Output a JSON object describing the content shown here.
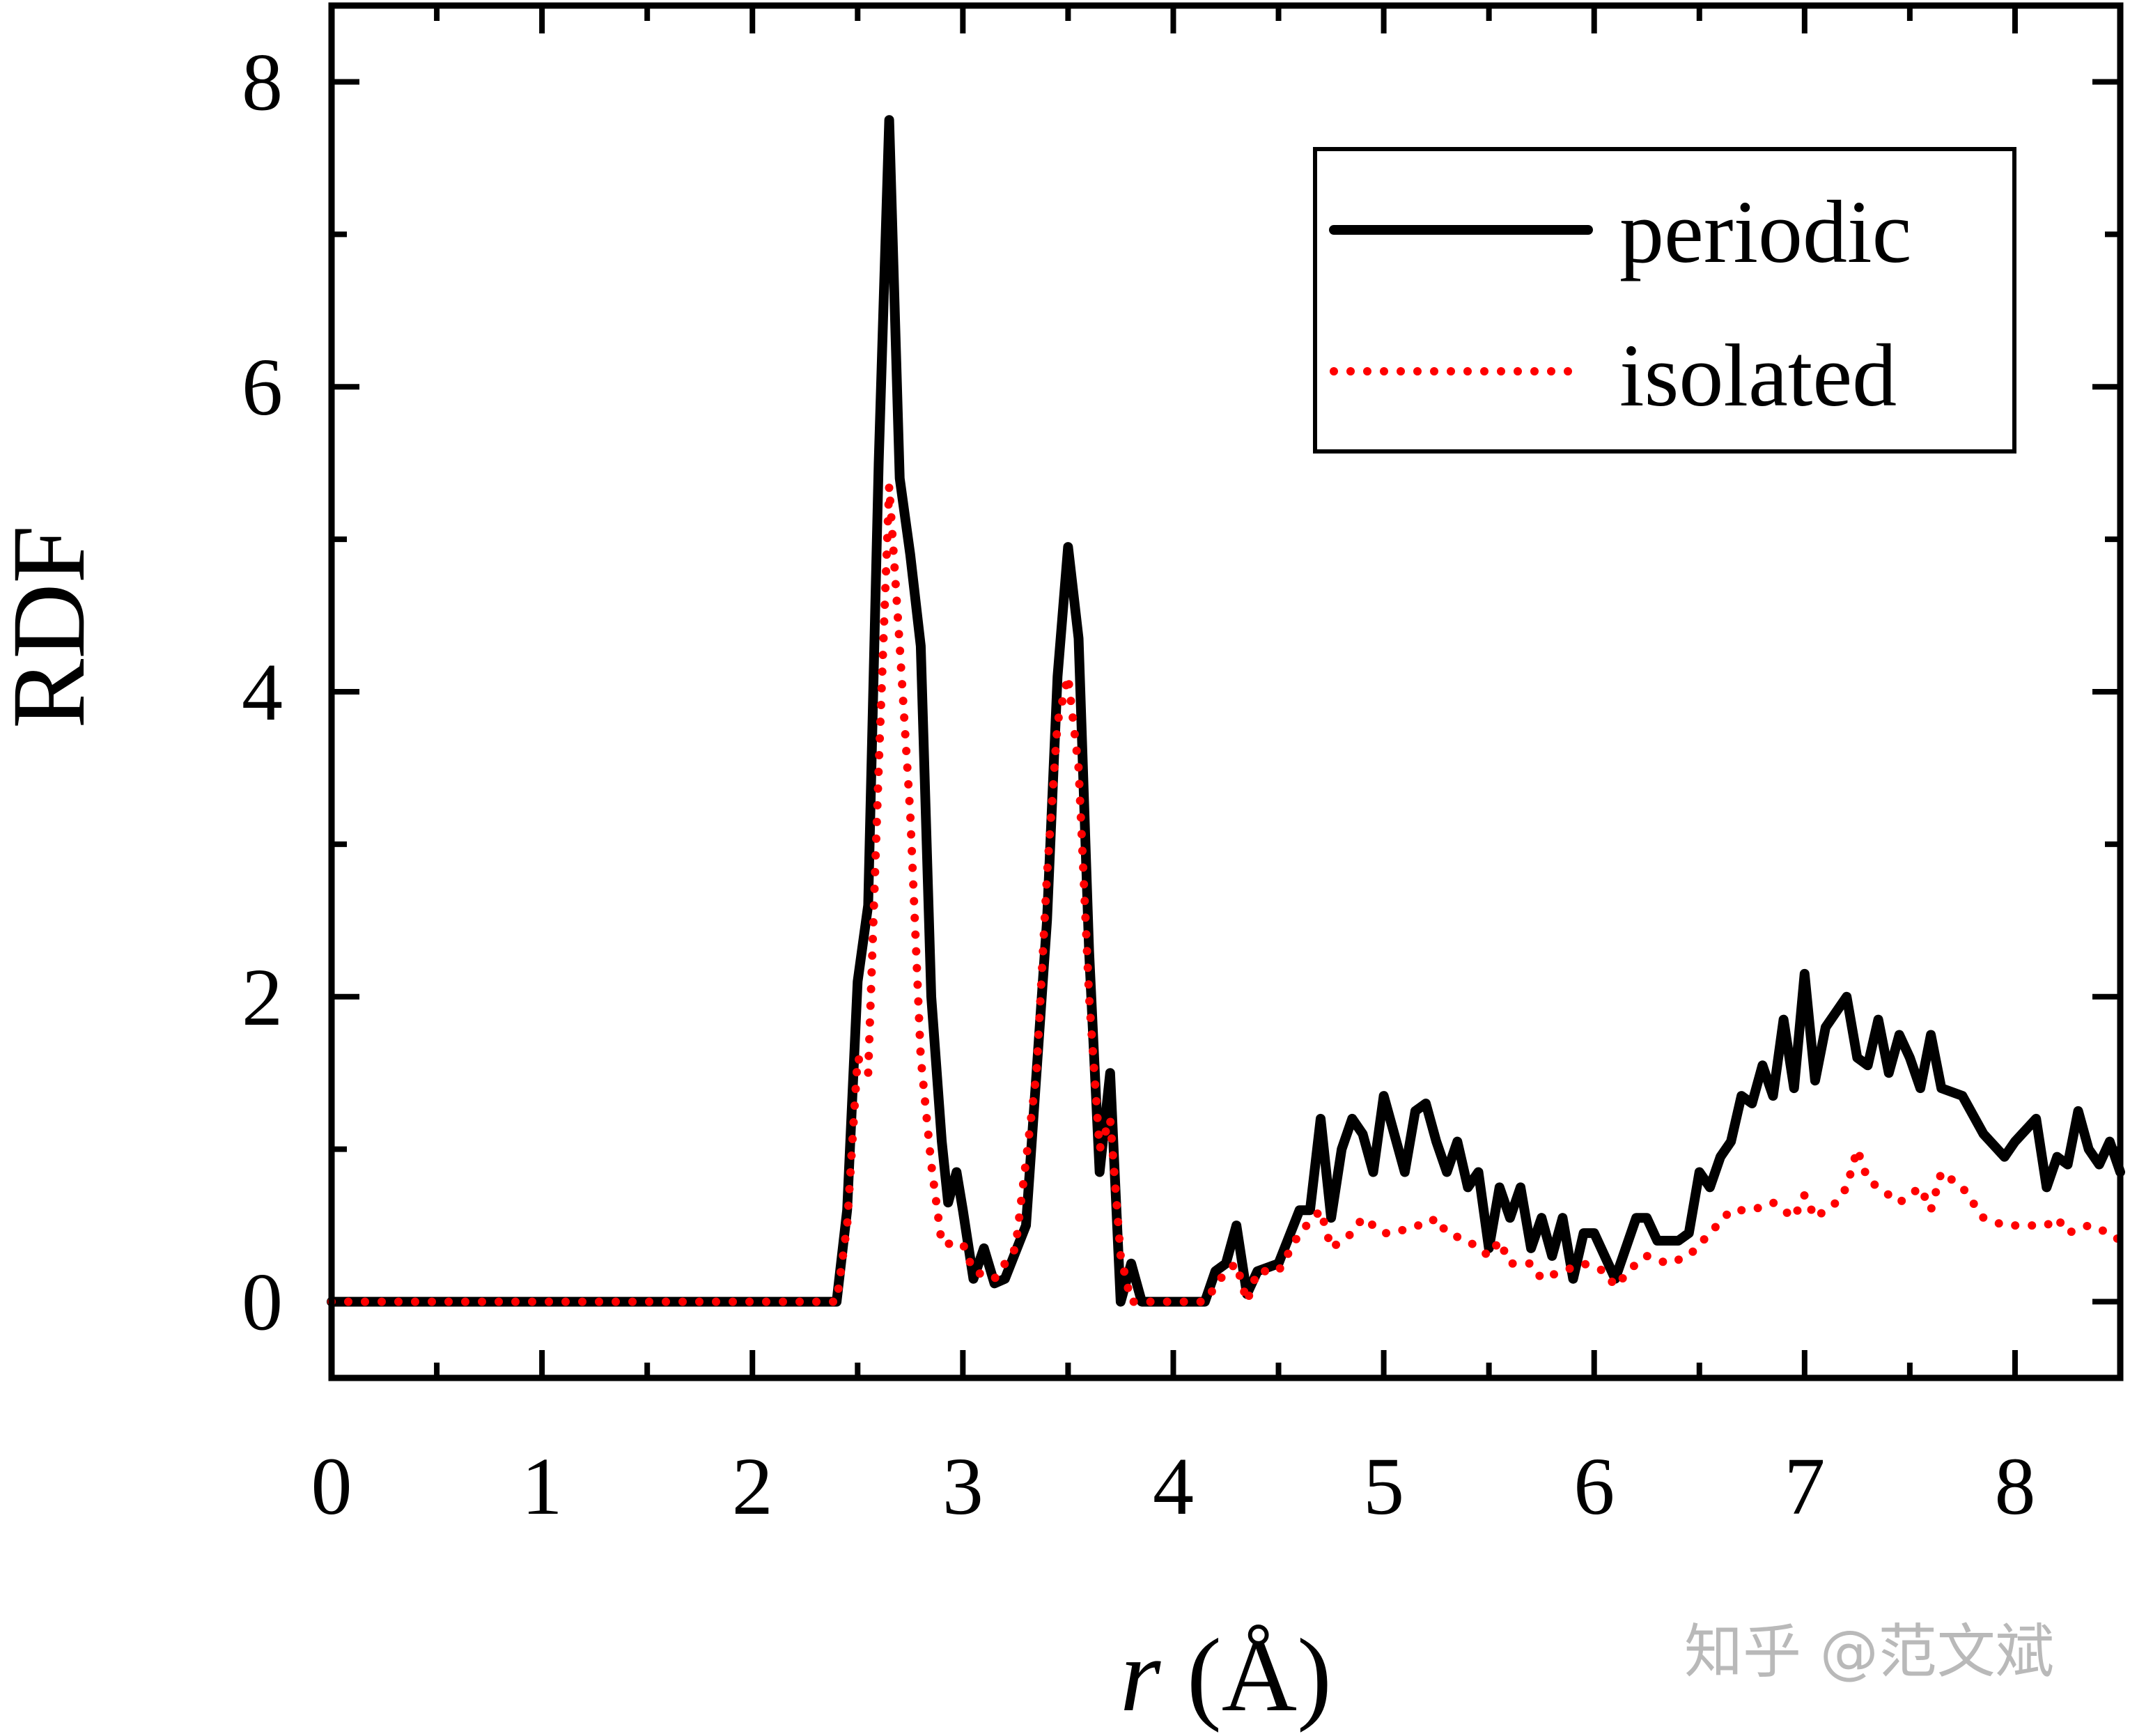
{
  "chart_data": {
    "type": "line",
    "title": "",
    "xlabel_italic": "r",
    "xlabel_rest": " (Å)",
    "ylabel": "RDF",
    "xlim": [
      0,
      8.5
    ],
    "ylim": [
      -0.5,
      8.5
    ],
    "x_major_ticks": [
      0,
      1,
      2,
      3,
      4,
      5,
      6,
      7,
      8
    ],
    "x_tick_labels": [
      "0",
      "1",
      "2",
      "3",
      "4",
      "5",
      "6",
      "7",
      "8"
    ],
    "x_minor_ticks": [
      0.5,
      1.5,
      2.5,
      3.5,
      4.5,
      5.5,
      6.5,
      7.5
    ],
    "y_major_ticks": [
      0,
      2,
      4,
      6,
      8
    ],
    "y_tick_labels": [
      "0",
      "2",
      "4",
      "6",
      "8"
    ],
    "y_minor_ticks": [
      1,
      3,
      5,
      7
    ],
    "grid": false,
    "legend_position": "top-right",
    "series": [
      {
        "name": "periodic",
        "color": "#000000",
        "style": "solid",
        "points": [
          [
            0,
            0
          ],
          [
            2.4,
            0
          ],
          [
            2.45,
            0.6
          ],
          [
            2.5,
            2.1
          ],
          [
            2.55,
            2.6
          ],
          [
            2.6,
            5.5
          ],
          [
            2.65,
            7.75
          ],
          [
            2.7,
            5.4
          ],
          [
            2.75,
            4.9
          ],
          [
            2.8,
            4.3
          ],
          [
            2.85,
            2.0
          ],
          [
            2.9,
            1.05
          ],
          [
            2.93,
            0.65
          ],
          [
            2.97,
            0.85
          ],
          [
            3.0,
            0.6
          ],
          [
            3.05,
            0.15
          ],
          [
            3.1,
            0.35
          ],
          [
            3.15,
            0.12
          ],
          [
            3.2,
            0.15
          ],
          [
            3.3,
            0.5
          ],
          [
            3.4,
            2.5
          ],
          [
            3.45,
            4.1
          ],
          [
            3.5,
            4.95
          ],
          [
            3.55,
            4.35
          ],
          [
            3.6,
            2.3
          ],
          [
            3.65,
            0.85
          ],
          [
            3.7,
            1.5
          ],
          [
            3.75,
            0.0
          ],
          [
            3.8,
            0.25
          ],
          [
            3.85,
            0.0
          ],
          [
            4.15,
            0.0
          ],
          [
            4.2,
            0.2
          ],
          [
            4.25,
            0.25
          ],
          [
            4.3,
            0.5
          ],
          [
            4.35,
            0.05
          ],
          [
            4.4,
            0.2
          ],
          [
            4.5,
            0.25
          ],
          [
            4.6,
            0.6
          ],
          [
            4.65,
            0.6
          ],
          [
            4.7,
            1.2
          ],
          [
            4.75,
            0.55
          ],
          [
            4.8,
            1.0
          ],
          [
            4.85,
            1.2
          ],
          [
            4.9,
            1.1
          ],
          [
            4.95,
            0.85
          ],
          [
            5.0,
            1.35
          ],
          [
            5.05,
            1.1
          ],
          [
            5.1,
            0.85
          ],
          [
            5.15,
            1.25
          ],
          [
            5.2,
            1.3
          ],
          [
            5.25,
            1.05
          ],
          [
            5.3,
            0.85
          ],
          [
            5.35,
            1.05
          ],
          [
            5.4,
            0.75
          ],
          [
            5.45,
            0.85
          ],
          [
            5.5,
            0.35
          ],
          [
            5.55,
            0.75
          ],
          [
            5.6,
            0.55
          ],
          [
            5.65,
            0.75
          ],
          [
            5.7,
            0.35
          ],
          [
            5.75,
            0.55
          ],
          [
            5.8,
            0.3
          ],
          [
            5.85,
            0.55
          ],
          [
            5.9,
            0.15
          ],
          [
            5.95,
            0.45
          ],
          [
            6.0,
            0.45
          ],
          [
            6.1,
            0.15
          ],
          [
            6.2,
            0.55
          ],
          [
            6.25,
            0.55
          ],
          [
            6.3,
            0.4
          ],
          [
            6.4,
            0.4
          ],
          [
            6.45,
            0.45
          ],
          [
            6.5,
            0.85
          ],
          [
            6.55,
            0.75
          ],
          [
            6.6,
            0.95
          ],
          [
            6.65,
            1.05
          ],
          [
            6.7,
            1.35
          ],
          [
            6.75,
            1.3
          ],
          [
            6.8,
            1.55
          ],
          [
            6.85,
            1.35
          ],
          [
            6.9,
            1.85
          ],
          [
            6.95,
            1.4
          ],
          [
            7.0,
            2.15
          ],
          [
            7.05,
            1.45
          ],
          [
            7.1,
            1.8
          ],
          [
            7.2,
            2.0
          ],
          [
            7.25,
            1.6
          ],
          [
            7.3,
            1.55
          ],
          [
            7.35,
            1.85
          ],
          [
            7.4,
            1.5
          ],
          [
            7.45,
            1.75
          ],
          [
            7.5,
            1.6
          ],
          [
            7.55,
            1.4
          ],
          [
            7.6,
            1.75
          ],
          [
            7.65,
            1.4
          ],
          [
            7.75,
            1.35
          ],
          [
            7.85,
            1.1
          ],
          [
            7.95,
            0.95
          ],
          [
            8.0,
            1.05
          ],
          [
            8.1,
            1.2
          ],
          [
            8.15,
            0.75
          ],
          [
            8.2,
            0.95
          ],
          [
            8.25,
            0.9
          ],
          [
            8.3,
            1.25
          ],
          [
            8.35,
            1.0
          ],
          [
            8.4,
            0.9
          ],
          [
            8.45,
            1.05
          ],
          [
            8.5,
            0.85
          ]
        ]
      },
      {
        "name": "isolated",
        "color": "#ff0000",
        "style": "dotted",
        "points": [
          [
            0,
            0
          ],
          [
            2.4,
            0
          ],
          [
            2.45,
            0.5
          ],
          [
            2.5,
            1.6
          ],
          [
            2.55,
            1.5
          ],
          [
            2.6,
            3.5
          ],
          [
            2.65,
            5.35
          ],
          [
            2.7,
            4.3
          ],
          [
            2.75,
            3.2
          ],
          [
            2.8,
            1.6
          ],
          [
            2.85,
            0.9
          ],
          [
            2.9,
            0.38
          ],
          [
            3.0,
            0.38
          ],
          [
            3.05,
            0.2
          ],
          [
            3.15,
            0.15
          ],
          [
            3.25,
            0.35
          ],
          [
            3.35,
            1.5
          ],
          [
            3.4,
            2.8
          ],
          [
            3.45,
            3.8
          ],
          [
            3.5,
            4.1
          ],
          [
            3.55,
            3.5
          ],
          [
            3.6,
            2.0
          ],
          [
            3.65,
            1.0
          ],
          [
            3.7,
            1.2
          ],
          [
            3.75,
            0.3
          ],
          [
            3.8,
            0.0
          ],
          [
            4.15,
            0.0
          ],
          [
            4.25,
            0.2
          ],
          [
            4.3,
            0.25
          ],
          [
            4.35,
            0.0
          ],
          [
            4.4,
            0.2
          ],
          [
            4.5,
            0.2
          ],
          [
            4.6,
            0.45
          ],
          [
            4.7,
            0.6
          ],
          [
            4.75,
            0.35
          ],
          [
            4.85,
            0.45
          ],
          [
            4.9,
            0.55
          ],
          [
            5.0,
            0.45
          ],
          [
            5.05,
            0.45
          ],
          [
            5.15,
            0.5
          ],
          [
            5.2,
            0.5
          ],
          [
            5.25,
            0.55
          ],
          [
            5.3,
            0.45
          ],
          [
            5.4,
            0.4
          ],
          [
            5.5,
            0.3
          ],
          [
            5.55,
            0.4
          ],
          [
            5.6,
            0.25
          ],
          [
            5.7,
            0.25
          ],
          [
            5.75,
            0.15
          ],
          [
            5.85,
            0.2
          ],
          [
            5.95,
            0.25
          ],
          [
            6.05,
            0.2
          ],
          [
            6.1,
            0.1
          ],
          [
            6.2,
            0.25
          ],
          [
            6.25,
            0.3
          ],
          [
            6.35,
            0.25
          ],
          [
            6.45,
            0.3
          ],
          [
            6.55,
            0.45
          ],
          [
            6.65,
            0.6
          ],
          [
            6.75,
            0.6
          ],
          [
            6.85,
            0.65
          ],
          [
            6.9,
            0.6
          ],
          [
            6.95,
            0.55
          ],
          [
            7.0,
            0.7
          ],
          [
            7.05,
            0.55
          ],
          [
            7.1,
            0.6
          ],
          [
            7.15,
            0.65
          ],
          [
            7.2,
            0.75
          ],
          [
            7.25,
            1.0
          ],
          [
            7.3,
            0.8
          ],
          [
            7.35,
            0.75
          ],
          [
            7.45,
            0.65
          ],
          [
            7.55,
            0.75
          ],
          [
            7.6,
            0.6
          ],
          [
            7.65,
            0.85
          ],
          [
            7.75,
            0.75
          ],
          [
            7.85,
            0.55
          ],
          [
            7.95,
            0.5
          ],
          [
            8.05,
            0.5
          ],
          [
            8.15,
            0.5
          ],
          [
            8.2,
            0.55
          ],
          [
            8.25,
            0.45
          ],
          [
            8.35,
            0.5
          ],
          [
            8.45,
            0.45
          ],
          [
            8.5,
            0.4
          ]
        ]
      }
    ]
  },
  "watermark": {
    "text": "知乎 @范文斌"
  }
}
